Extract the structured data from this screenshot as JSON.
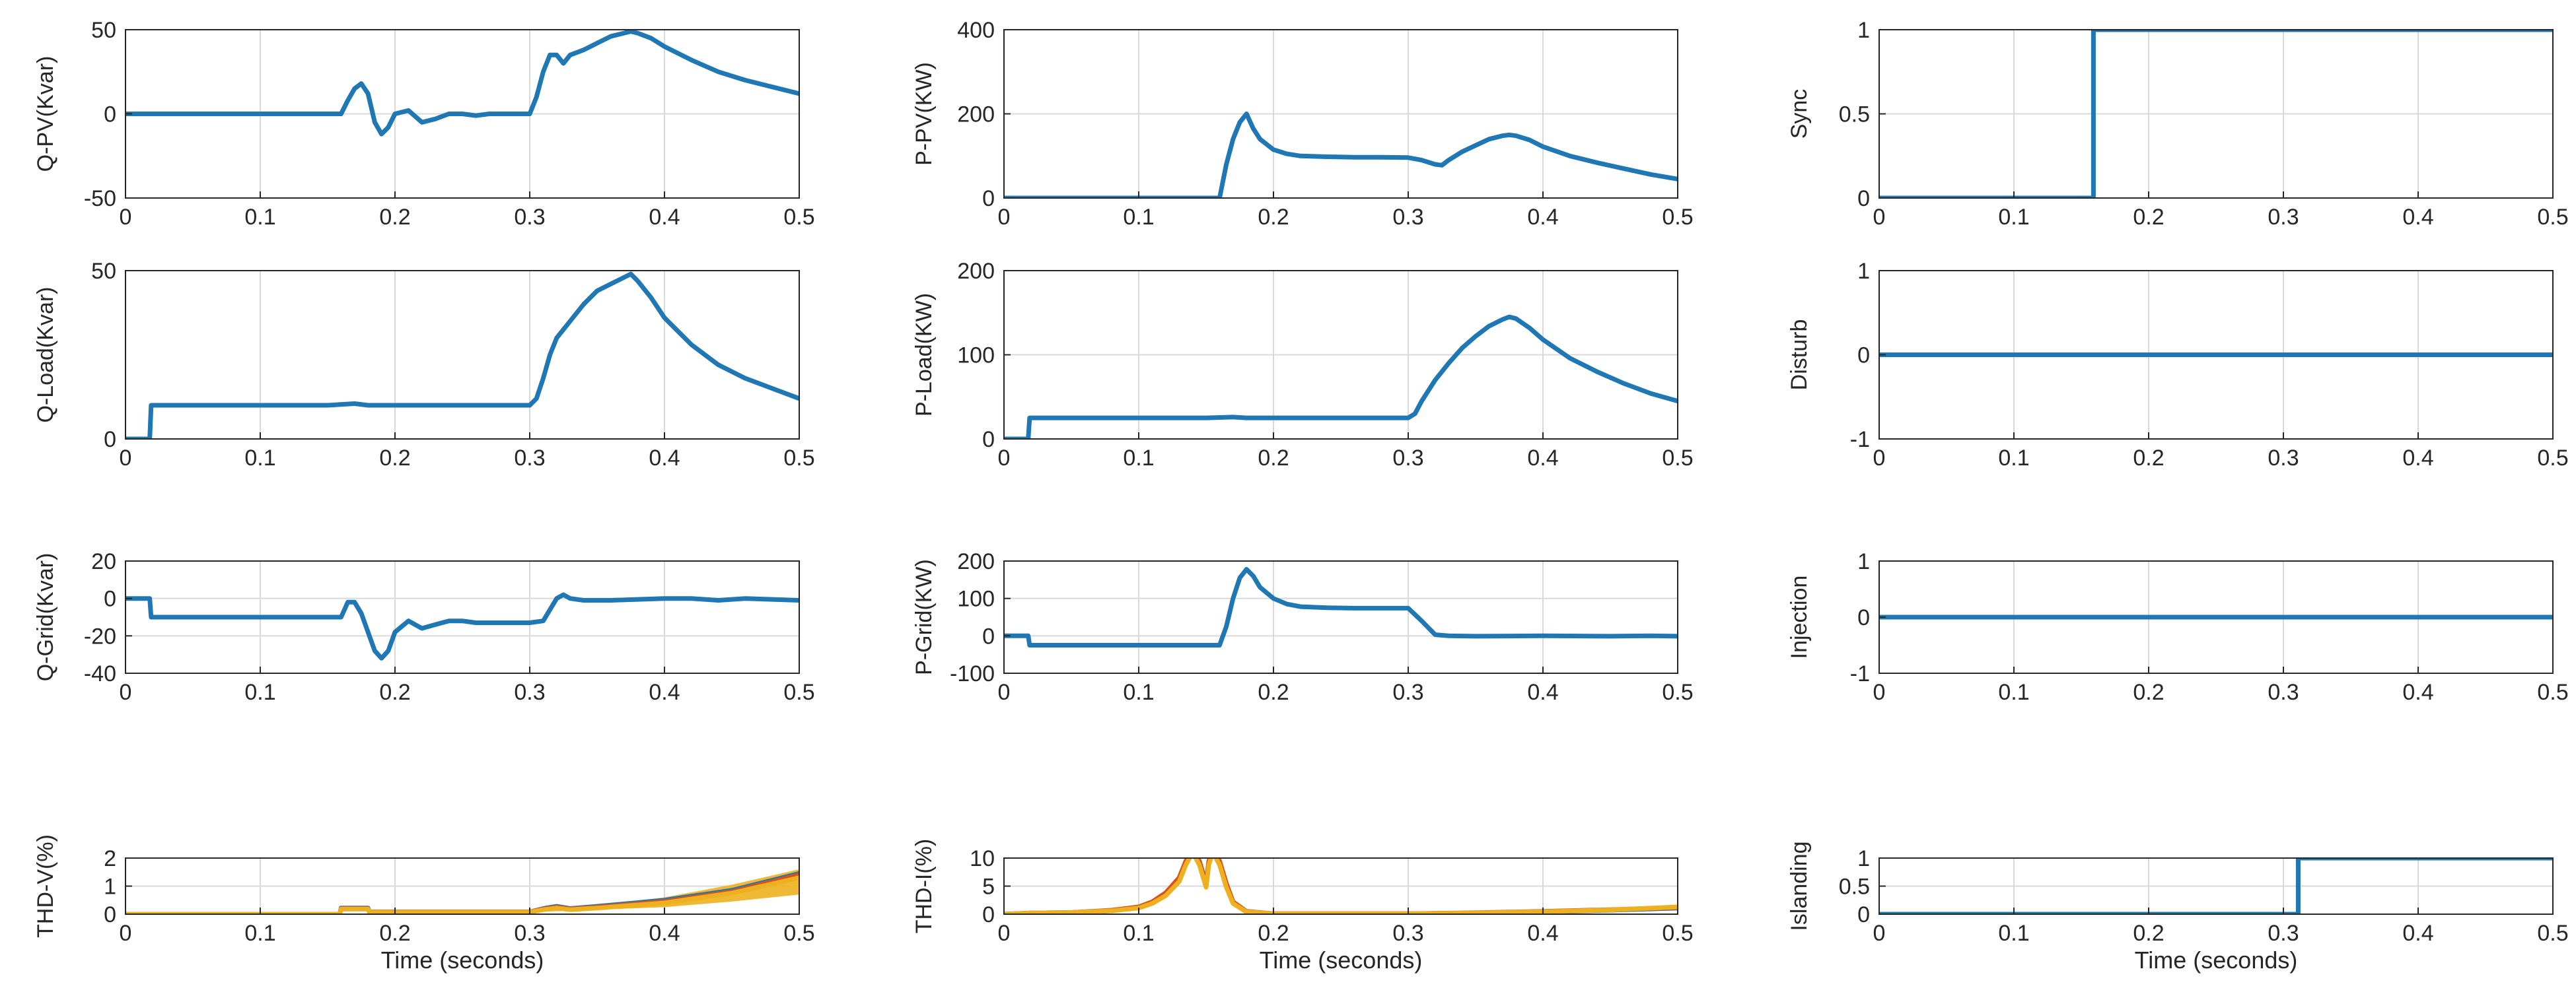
{
  "x_axis_label": "Time (seconds)",
  "colors": {
    "blue": "#1f77b4",
    "red": "#d95319",
    "yellow": "#edb120",
    "grid": "#d9d9d9",
    "axis": "#262626"
  },
  "chart_data": [
    {
      "id": "qpv",
      "type": "line",
      "ylabel": "Q-PV(Kvar)",
      "xlim": [
        0,
        0.5
      ],
      "ylim": [
        -50,
        50
      ],
      "xticks": [
        0,
        0.1,
        0.2,
        0.3,
        0.4,
        0.5
      ],
      "yticks": [
        -50,
        0,
        50
      ],
      "grid": true,
      "xlabel": "",
      "series": [
        {
          "color": "#1f77b4",
          "x": [
            0,
            0.15,
            0.16,
            0.165,
            0.17,
            0.175,
            0.18,
            0.185,
            0.19,
            0.195,
            0.2,
            0.21,
            0.22,
            0.23,
            0.24,
            0.25,
            0.26,
            0.27,
            0.28,
            0.29,
            0.3,
            0.305,
            0.31,
            0.315,
            0.32,
            0.325,
            0.33,
            0.34,
            0.35,
            0.36,
            0.37,
            0.375,
            0.38,
            0.39,
            0.4,
            0.42,
            0.44,
            0.46,
            0.48,
            0.5
          ],
          "y": [
            0,
            0,
            0,
            8,
            15,
            18,
            12,
            -5,
            -12,
            -8,
            0,
            2,
            -5,
            -3,
            0,
            0,
            -1,
            0,
            0,
            0,
            0,
            10,
            25,
            35,
            35,
            30,
            35,
            38,
            42,
            46,
            48,
            49,
            48,
            45,
            40,
            32,
            25,
            20,
            16,
            12
          ]
        }
      ]
    },
    {
      "id": "ppv",
      "type": "line",
      "ylabel": "P-PV(KW)",
      "xlim": [
        0,
        0.5
      ],
      "ylim": [
        0,
        400
      ],
      "xticks": [
        0,
        0.1,
        0.2,
        0.3,
        0.4,
        0.5
      ],
      "yticks": [
        0,
        200,
        400
      ],
      "grid": true,
      "xlabel": "",
      "series": [
        {
          "color": "#1f77b4",
          "x": [
            0,
            0.15,
            0.16,
            0.165,
            0.17,
            0.175,
            0.18,
            0.185,
            0.19,
            0.2,
            0.21,
            0.22,
            0.24,
            0.26,
            0.28,
            0.3,
            0.31,
            0.32,
            0.325,
            0.33,
            0.34,
            0.35,
            0.36,
            0.37,
            0.375,
            0.38,
            0.39,
            0.4,
            0.42,
            0.44,
            0.46,
            0.48,
            0.5
          ],
          "y": [
            0,
            0,
            0,
            80,
            140,
            180,
            200,
            165,
            140,
            115,
            105,
            100,
            98,
            97,
            97,
            96,
            90,
            80,
            78,
            90,
            110,
            125,
            140,
            148,
            150,
            148,
            138,
            122,
            100,
            84,
            70,
            56,
            45
          ]
        }
      ]
    },
    {
      "id": "sync",
      "type": "line",
      "ylabel": "Sync",
      "xlim": [
        0,
        0.5
      ],
      "ylim": [
        0,
        1
      ],
      "xticks": [
        0,
        0.1,
        0.2,
        0.3,
        0.4,
        0.5
      ],
      "yticks": [
        0,
        0.5,
        1
      ],
      "grid": true,
      "xlabel": "",
      "series": [
        {
          "color": "#1f77b4",
          "x": [
            0,
            0.159,
            0.159,
            0.5
          ],
          "y": [
            0,
            0,
            1,
            1
          ]
        }
      ]
    },
    {
      "id": "qload",
      "type": "line",
      "ylabel": "Q-Load(Kvar)",
      "xlim": [
        0,
        0.5
      ],
      "ylim": [
        0,
        50
      ],
      "xticks": [
        0,
        0.1,
        0.2,
        0.3,
        0.4,
        0.5
      ],
      "yticks": [
        0,
        50
      ],
      "grid": true,
      "xlabel": "",
      "series": [
        {
          "color": "#1f77b4",
          "x": [
            0,
            0.018,
            0.019,
            0.15,
            0.17,
            0.18,
            0.2,
            0.25,
            0.3,
            0.305,
            0.31,
            0.315,
            0.32,
            0.33,
            0.34,
            0.35,
            0.36,
            0.37,
            0.375,
            0.38,
            0.39,
            0.4,
            0.42,
            0.44,
            0.46,
            0.48,
            0.5
          ],
          "y": [
            0,
            0,
            10,
            10,
            10.5,
            10,
            10,
            10,
            10,
            12,
            18,
            25,
            30,
            35,
            40,
            44,
            46,
            48,
            49,
            47,
            42,
            36,
            28,
            22,
            18,
            15,
            12
          ]
        }
      ]
    },
    {
      "id": "pload",
      "type": "line",
      "ylabel": "P-Load(KW)",
      "xlim": [
        0,
        0.5
      ],
      "ylim": [
        0,
        200
      ],
      "xticks": [
        0,
        0.1,
        0.2,
        0.3,
        0.4,
        0.5
      ],
      "yticks": [
        0,
        100,
        200
      ],
      "grid": true,
      "xlabel": "",
      "series": [
        {
          "color": "#1f77b4",
          "x": [
            0,
            0.018,
            0.019,
            0.15,
            0.17,
            0.18,
            0.2,
            0.25,
            0.3,
            0.305,
            0.31,
            0.32,
            0.33,
            0.34,
            0.35,
            0.36,
            0.37,
            0.375,
            0.38,
            0.39,
            0.4,
            0.42,
            0.44,
            0.46,
            0.48,
            0.5
          ],
          "y": [
            0,
            0,
            25,
            25,
            26,
            25,
            25,
            25,
            25,
            30,
            45,
            70,
            90,
            108,
            122,
            134,
            142,
            145,
            143,
            132,
            118,
            96,
            80,
            66,
            54,
            45
          ]
        }
      ]
    },
    {
      "id": "disturb",
      "type": "line",
      "ylabel": "Disturb",
      "xlim": [
        0,
        0.5
      ],
      "ylim": [
        -1,
        1
      ],
      "xticks": [
        0,
        0.1,
        0.2,
        0.3,
        0.4,
        0.5
      ],
      "yticks": [
        -1,
        0,
        1
      ],
      "grid": true,
      "xlabel": "",
      "series": [
        {
          "color": "#1f77b4",
          "x": [
            0,
            0.5
          ],
          "y": [
            0,
            0
          ]
        }
      ]
    },
    {
      "id": "qgrid",
      "type": "line",
      "ylabel": "Q-Grid(Kvar)",
      "xlim": [
        0,
        0.5
      ],
      "ylim": [
        -40,
        20
      ],
      "xticks": [
        0,
        0.1,
        0.2,
        0.3,
        0.4,
        0.5
      ],
      "yticks": [
        -40,
        -20,
        0,
        20
      ],
      "grid": true,
      "xlabel": "",
      "series": [
        {
          "color": "#1f77b4",
          "x": [
            0,
            0.018,
            0.019,
            0.15,
            0.16,
            0.165,
            0.17,
            0.175,
            0.18,
            0.185,
            0.19,
            0.195,
            0.2,
            0.21,
            0.22,
            0.23,
            0.24,
            0.25,
            0.26,
            0.28,
            0.3,
            0.31,
            0.32,
            0.325,
            0.33,
            0.34,
            0.35,
            0.36,
            0.38,
            0.4,
            0.42,
            0.44,
            0.46,
            0.48,
            0.5
          ],
          "y": [
            0,
            0,
            -10,
            -10,
            -10,
            -2,
            -2,
            -8,
            -18,
            -28,
            -32,
            -28,
            -18,
            -12,
            -16,
            -14,
            -12,
            -12,
            -13,
            -13,
            -13,
            -12,
            0,
            2,
            0,
            -1,
            -1,
            -1,
            -0.5,
            0,
            0,
            -1,
            0,
            -0.5,
            -1
          ]
        }
      ]
    },
    {
      "id": "pgrid",
      "type": "line",
      "ylabel": "P-Grid(KW)",
      "xlim": [
        0,
        0.5
      ],
      "ylim": [
        -100,
        200
      ],
      "xticks": [
        0,
        0.1,
        0.2,
        0.3,
        0.4,
        0.5
      ],
      "yticks": [
        -100,
        0,
        100,
        200
      ],
      "grid": true,
      "xlabel": "",
      "series": [
        {
          "color": "#1f77b4",
          "x": [
            0,
            0.018,
            0.019,
            0.15,
            0.16,
            0.165,
            0.17,
            0.175,
            0.18,
            0.185,
            0.19,
            0.2,
            0.21,
            0.22,
            0.24,
            0.26,
            0.28,
            0.3,
            0.31,
            0.32,
            0.33,
            0.35,
            0.4,
            0.45,
            0.48,
            0.5
          ],
          "y": [
            0,
            0,
            -25,
            -25,
            -25,
            25,
            100,
            155,
            178,
            160,
            130,
            100,
            85,
            78,
            75,
            74,
            74,
            74,
            40,
            3,
            0,
            -1,
            0,
            -1,
            0,
            -1
          ]
        }
      ]
    },
    {
      "id": "injection",
      "type": "line",
      "ylabel": "Injection",
      "xlim": [
        0,
        0.5
      ],
      "ylim": [
        -1,
        1
      ],
      "xticks": [
        0,
        0.1,
        0.2,
        0.3,
        0.4,
        0.5
      ],
      "yticks": [
        -1,
        0,
        1
      ],
      "grid": true,
      "xlabel": "",
      "series": [
        {
          "color": "#1f77b4",
          "x": [
            0,
            0.5
          ],
          "y": [
            0,
            0
          ]
        }
      ]
    },
    {
      "id": "thdv",
      "type": "line",
      "ylabel": "THD-V(%)",
      "xlim": [
        0,
        0.5
      ],
      "ylim": [
        0,
        2
      ],
      "xticks": [
        0,
        0.1,
        0.2,
        0.3,
        0.4,
        0.5
      ],
      "yticks": [
        0,
        1,
        2
      ],
      "grid": true,
      "xlabel": "Time (seconds)",
      "series": [
        {
          "color": "#1f77b4",
          "x": [
            0,
            0.159,
            0.16,
            0.18,
            0.181,
            0.3,
            0.31,
            0.32,
            0.33,
            0.35,
            0.4,
            0.45,
            0.5
          ],
          "y": [
            0,
            0,
            0.22,
            0.22,
            0.08,
            0.08,
            0.2,
            0.28,
            0.2,
            0.28,
            0.5,
            0.85,
            1.45
          ]
        },
        {
          "color": "#d95319",
          "x": [
            0,
            0.159,
            0.16,
            0.18,
            0.181,
            0.3,
            0.31,
            0.32,
            0.33,
            0.35,
            0.4,
            0.45,
            0.5
          ],
          "y": [
            0,
            0,
            0.2,
            0.2,
            0.08,
            0.08,
            0.18,
            0.25,
            0.18,
            0.25,
            0.45,
            0.8,
            1.4
          ]
        },
        {
          "color": "#edb120",
          "x": [
            0,
            0.159,
            0.16,
            0.18,
            0.181,
            0.3,
            0.31,
            0.32,
            0.33,
            0.35,
            0.4,
            0.45,
            0.5
          ],
          "y": [
            0,
            0,
            0.18,
            0.18,
            0.07,
            0.07,
            0.16,
            0.22,
            0.16,
            0.22,
            0.4,
            0.75,
            1.3
          ]
        }
      ],
      "band": {
        "color": "#edb120",
        "x": [
          0.3,
          0.35,
          0.4,
          0.45,
          0.5
        ],
        "upper": [
          0.12,
          0.32,
          0.6,
          1.05,
          1.6
        ],
        "lower": [
          0.07,
          0.16,
          0.25,
          0.45,
          0.7
        ]
      }
    },
    {
      "id": "thdi",
      "type": "line",
      "ylabel": "THD-I(%)",
      "xlim": [
        0,
        0.5
      ],
      "ylim": [
        0,
        10
      ],
      "xticks": [
        0,
        0.1,
        0.2,
        0.3,
        0.4,
        0.5
      ],
      "yticks": [
        0,
        5,
        10
      ],
      "grid": true,
      "xlabel": "Time (seconds)",
      "series": [
        {
          "color": "#1f77b4",
          "x": [
            0,
            0.02,
            0.05,
            0.08,
            0.1,
            0.11,
            0.12,
            0.13,
            0.135,
            0.14,
            0.145,
            0.15,
            0.152,
            0.155,
            0.16,
            0.165,
            0.17,
            0.18,
            0.2,
            0.3,
            0.35,
            0.4,
            0.45,
            0.5
          ],
          "y": [
            0,
            0.2,
            0.3,
            0.6,
            1.2,
            2,
            3.5,
            6,
            9,
            11,
            9,
            5,
            9,
            11,
            9,
            5,
            2,
            0.4,
            0.1,
            0.1,
            0.2,
            0.4,
            0.7,
            1.1
          ]
        },
        {
          "color": "#d95319",
          "x": [
            0,
            0.02,
            0.05,
            0.08,
            0.1,
            0.11,
            0.12,
            0.13,
            0.135,
            0.14,
            0.145,
            0.15,
            0.152,
            0.155,
            0.16,
            0.165,
            0.17,
            0.18,
            0.2,
            0.3,
            0.35,
            0.4,
            0.45,
            0.5
          ],
          "y": [
            0,
            0.2,
            0.3,
            0.7,
            1.3,
            2.2,
            3.8,
            6.5,
            9.5,
            11,
            9.5,
            5.5,
            9.5,
            11,
            9.5,
            5.5,
            2.2,
            0.5,
            0.1,
            0.1,
            0.25,
            0.5,
            0.8,
            1.2
          ]
        },
        {
          "color": "#edb120",
          "x": [
            0,
            0.02,
            0.05,
            0.08,
            0.1,
            0.11,
            0.12,
            0.13,
            0.135,
            0.14,
            0.145,
            0.15,
            0.152,
            0.155,
            0.16,
            0.165,
            0.17,
            0.18,
            0.2,
            0.3,
            0.35,
            0.4,
            0.45,
            0.5
          ],
          "y": [
            0,
            0.2,
            0.3,
            0.6,
            1.1,
            1.9,
            3.3,
            5.8,
            8.8,
            11,
            8.8,
            4.8,
            8.8,
            11,
            8.8,
            4.8,
            1.9,
            0.4,
            0.1,
            0.1,
            0.2,
            0.45,
            0.75,
            1.3
          ]
        }
      ]
    },
    {
      "id": "islanding",
      "type": "line",
      "ylabel": "Islanding",
      "xlim": [
        0,
        0.5
      ],
      "ylim": [
        0,
        1
      ],
      "xticks": [
        0,
        0.1,
        0.2,
        0.3,
        0.4,
        0.5
      ],
      "yticks": [
        0,
        0.5,
        1
      ],
      "grid": true,
      "xlabel": "Time (seconds)",
      "series": [
        {
          "color": "#1f77b4",
          "x": [
            0,
            0.311,
            0.311,
            0.5
          ],
          "y": [
            0,
            0,
            1,
            1
          ]
        }
      ]
    }
  ]
}
